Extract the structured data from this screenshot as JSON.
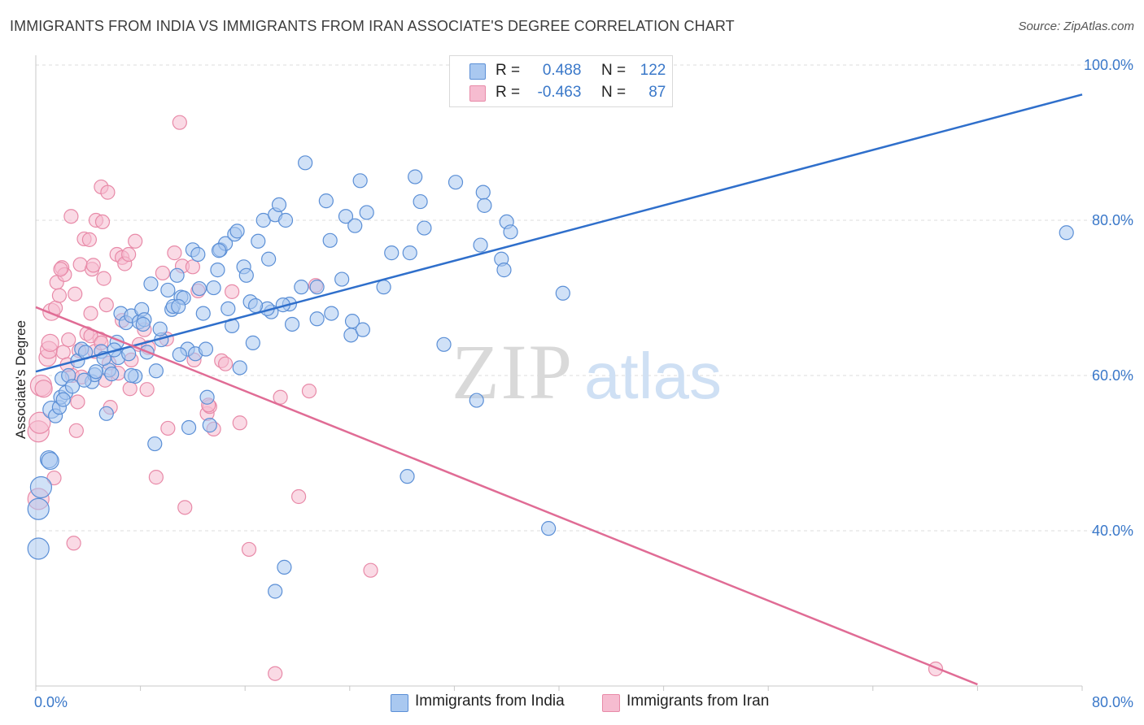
{
  "title": "IMMIGRANTS FROM INDIA VS IMMIGRANTS FROM IRAN ASSOCIATE'S DEGREE CORRELATION CHART",
  "source": "Source: ZipAtlas.com",
  "watermark": {
    "zip": "ZIP",
    "atlas": "atlas"
  },
  "legend": {
    "india": {
      "r_label": "R =",
      "r_value": "0.488",
      "n_label": "N =",
      "n_value": "122"
    },
    "iran": {
      "r_label": "R =",
      "r_value": "-0.463",
      "n_label": "N =",
      "n_value": "87"
    }
  },
  "bottom_legend": {
    "india": "Immigrants from India",
    "iran": "Immigrants from Iran"
  },
  "colors": {
    "india_fill": "#a9c8f0",
    "india_stroke": "#5b8fd6",
    "india_line": "#2f6fcb",
    "iran_fill": "#f6bcd0",
    "iran_stroke": "#e88aa8",
    "iran_line": "#e06c95",
    "axis_text": "#3a78c9"
  },
  "chart_data": {
    "type": "scatter",
    "xlabel": "",
    "ylabel": "Associate's Degree",
    "xlim": [
      0,
      80
    ],
    "ylim": [
      20,
      100
    ],
    "x_tick_labels": [
      "0.0%",
      "80.0%"
    ],
    "y_ticks": [
      40,
      60,
      80,
      100
    ],
    "y_tick_labels": [
      "40.0%",
      "60.0%",
      "80.0%",
      "100.0%"
    ],
    "grid": true,
    "legend_position": "top-center",
    "series": [
      {
        "name": "Immigrants from India",
        "trendline": {
          "x": [
            0,
            80
          ],
          "y": [
            60.5,
            96.2
          ]
        },
        "points": [
          [
            0.2,
            37.7
          ],
          [
            0.2,
            42.8
          ],
          [
            0.4,
            45.6
          ],
          [
            1.0,
            49.2
          ],
          [
            1.2,
            55.6
          ],
          [
            1.5,
            54.8
          ],
          [
            1.8,
            55.9
          ],
          [
            1.9,
            57.2
          ],
          [
            2.0,
            59.6
          ],
          [
            2.3,
            57.8
          ],
          [
            2.5,
            60.0
          ],
          [
            2.8,
            58.6
          ],
          [
            3.2,
            61.9
          ],
          [
            3.5,
            63.4
          ],
          [
            3.8,
            63.0
          ],
          [
            4.3,
            59.2
          ],
          [
            4.5,
            60.1
          ],
          [
            5.0,
            63.1
          ],
          [
            5.4,
            55.1
          ],
          [
            5.6,
            60.7
          ],
          [
            5.8,
            60.2
          ],
          [
            6.2,
            64.3
          ],
          [
            6.3,
            62.3
          ],
          [
            6.5,
            68.0
          ],
          [
            6.9,
            66.8
          ],
          [
            7.1,
            62.8
          ],
          [
            7.3,
            67.7
          ],
          [
            7.6,
            59.9
          ],
          [
            7.9,
            66.9
          ],
          [
            8.1,
            68.5
          ],
          [
            8.3,
            67.2
          ],
          [
            8.5,
            63.0
          ],
          [
            8.8,
            71.8
          ],
          [
            9.1,
            51.2
          ],
          [
            9.2,
            60.6
          ],
          [
            9.6,
            64.6
          ],
          [
            10.1,
            71.0
          ],
          [
            10.4,
            68.5
          ],
          [
            10.5,
            68.9
          ],
          [
            10.8,
            72.9
          ],
          [
            11.1,
            70.1
          ],
          [
            11.3,
            70.0
          ],
          [
            11.6,
            63.4
          ],
          [
            11.7,
            53.3
          ],
          [
            12.0,
            76.2
          ],
          [
            12.2,
            62.8
          ],
          [
            12.4,
            75.6
          ],
          [
            12.8,
            68.0
          ],
          [
            13.1,
            57.2
          ],
          [
            13.3,
            53.6
          ],
          [
            13.6,
            71.3
          ],
          [
            13.9,
            73.6
          ],
          [
            14.1,
            76.2
          ],
          [
            14.5,
            77.0
          ],
          [
            14.7,
            68.6
          ],
          [
            15.0,
            66.4
          ],
          [
            15.2,
            78.2
          ],
          [
            15.4,
            78.6
          ],
          [
            15.6,
            61.0
          ],
          [
            15.9,
            74.0
          ],
          [
            16.1,
            72.9
          ],
          [
            16.4,
            69.5
          ],
          [
            16.6,
            64.2
          ],
          [
            17.0,
            77.3
          ],
          [
            17.4,
            80.0
          ],
          [
            17.8,
            75.0
          ],
          [
            18.0,
            68.2
          ],
          [
            18.3,
            80.7
          ],
          [
            18.6,
            82.0
          ],
          [
            19.1,
            80.0
          ],
          [
            19.4,
            69.2
          ],
          [
            19.6,
            66.6
          ],
          [
            20.3,
            71.4
          ],
          [
            20.6,
            87.4
          ],
          [
            21.5,
            67.3
          ],
          [
            22.2,
            82.5
          ],
          [
            22.5,
            77.4
          ],
          [
            23.4,
            72.4
          ],
          [
            23.7,
            80.5
          ],
          [
            24.1,
            65.2
          ],
          [
            24.4,
            79.3
          ],
          [
            24.8,
            85.1
          ],
          [
            25.0,
            65.9
          ],
          [
            25.3,
            81.0
          ],
          [
            26.6,
            71.4
          ],
          [
            27.2,
            75.8
          ],
          [
            28.4,
            47.0
          ],
          [
            28.6,
            75.8
          ],
          [
            29.0,
            85.6
          ],
          [
            29.4,
            82.4
          ],
          [
            29.7,
            79.0
          ],
          [
            31.2,
            64.0
          ],
          [
            32.1,
            84.9
          ],
          [
            33.7,
            56.8
          ],
          [
            34.0,
            76.8
          ],
          [
            34.2,
            83.6
          ],
          [
            34.3,
            81.9
          ],
          [
            35.6,
            75.0
          ],
          [
            35.8,
            73.6
          ],
          [
            36.0,
            79.8
          ],
          [
            36.3,
            78.5
          ],
          [
            39.2,
            40.3
          ],
          [
            40.3,
            70.6
          ],
          [
            78.8,
            78.4
          ],
          [
            13.0,
            63.4
          ],
          [
            21.5,
            71.4
          ],
          [
            18.9,
            69.1
          ],
          [
            8.2,
            66.6
          ],
          [
            4.6,
            60.5
          ],
          [
            2.1,
            56.9
          ],
          [
            1.1,
            49.0
          ],
          [
            3.7,
            59.4
          ],
          [
            6.0,
            63.3
          ],
          [
            10.9,
            68.9
          ],
          [
            14.0,
            76.1
          ],
          [
            17.7,
            68.6
          ],
          [
            16.8,
            69.0
          ],
          [
            22.6,
            68.0
          ],
          [
            24.2,
            67.0
          ],
          [
            12.5,
            71.2
          ],
          [
            9.5,
            66.0
          ],
          [
            7.3,
            60.0
          ],
          [
            5.2,
            62.2
          ],
          [
            19.0,
            35.3
          ],
          [
            11.0,
            62.7
          ],
          [
            18.3,
            32.2
          ]
        ]
      },
      {
        "name": "Immigrants from Iran",
        "trendline": {
          "x": [
            0,
            72
          ],
          "y": [
            68.8,
            20.2
          ]
        },
        "points": [
          [
            0.2,
            44.1
          ],
          [
            0.2,
            52.8
          ],
          [
            0.3,
            53.9
          ],
          [
            0.4,
            58.7
          ],
          [
            0.6,
            58.3
          ],
          [
            0.9,
            62.3
          ],
          [
            1.0,
            63.3
          ],
          [
            1.1,
            64.2
          ],
          [
            1.2,
            68.2
          ],
          [
            1.4,
            46.8
          ],
          [
            1.5,
            68.7
          ],
          [
            1.6,
            72.0
          ],
          [
            1.8,
            70.3
          ],
          [
            2.0,
            73.9
          ],
          [
            2.1,
            63.0
          ],
          [
            2.2,
            73.0
          ],
          [
            2.5,
            64.6
          ],
          [
            2.7,
            80.5
          ],
          [
            2.8,
            60.0
          ],
          [
            2.9,
            38.4
          ],
          [
            3.0,
            70.5
          ],
          [
            3.1,
            52.9
          ],
          [
            3.2,
            56.6
          ],
          [
            3.4,
            74.3
          ],
          [
            3.5,
            59.8
          ],
          [
            3.7,
            77.6
          ],
          [
            3.9,
            65.4
          ],
          [
            4.1,
            77.5
          ],
          [
            4.2,
            68.0
          ],
          [
            4.3,
            73.7
          ],
          [
            4.4,
            74.2
          ],
          [
            4.5,
            63.1
          ],
          [
            4.6,
            80.0
          ],
          [
            4.9,
            64.7
          ],
          [
            5.0,
            84.3
          ],
          [
            5.1,
            79.8
          ],
          [
            5.2,
            72.5
          ],
          [
            5.3,
            59.4
          ],
          [
            5.4,
            69.1
          ],
          [
            5.5,
            83.6
          ],
          [
            5.6,
            61.6
          ],
          [
            5.7,
            55.9
          ],
          [
            6.2,
            75.6
          ],
          [
            6.3,
            60.3
          ],
          [
            6.6,
            75.2
          ],
          [
            6.8,
            74.4
          ],
          [
            7.1,
            75.6
          ],
          [
            7.2,
            58.3
          ],
          [
            7.3,
            62.0
          ],
          [
            7.6,
            77.3
          ],
          [
            7.9,
            64.0
          ],
          [
            8.3,
            65.9
          ],
          [
            8.6,
            63.6
          ],
          [
            9.2,
            46.9
          ],
          [
            9.7,
            73.2
          ],
          [
            10.1,
            53.2
          ],
          [
            10.6,
            75.8
          ],
          [
            11.0,
            92.6
          ],
          [
            11.2,
            74.1
          ],
          [
            11.4,
            43.0
          ],
          [
            12.0,
            74.0
          ],
          [
            12.4,
            70.9
          ],
          [
            13.1,
            55.1
          ],
          [
            13.3,
            56.0
          ],
          [
            13.6,
            53.1
          ],
          [
            14.2,
            61.9
          ],
          [
            14.5,
            61.5
          ],
          [
            15.0,
            70.8
          ],
          [
            15.6,
            53.9
          ],
          [
            16.3,
            37.6
          ],
          [
            18.3,
            21.6
          ],
          [
            18.7,
            57.2
          ],
          [
            20.1,
            44.4
          ],
          [
            20.9,
            58.0
          ],
          [
            21.4,
            71.6
          ],
          [
            25.6,
            34.9
          ],
          [
            68.8,
            22.2
          ],
          [
            6.6,
            67.1
          ],
          [
            4.2,
            65.1
          ],
          [
            10.0,
            64.7
          ],
          [
            12.1,
            62.0
          ],
          [
            8.5,
            58.2
          ],
          [
            2.4,
            61.4
          ],
          [
            1.9,
            73.7
          ],
          [
            5.0,
            64.2
          ],
          [
            13.2,
            56.2
          ],
          [
            3.3,
            63.2
          ]
        ]
      }
    ]
  }
}
